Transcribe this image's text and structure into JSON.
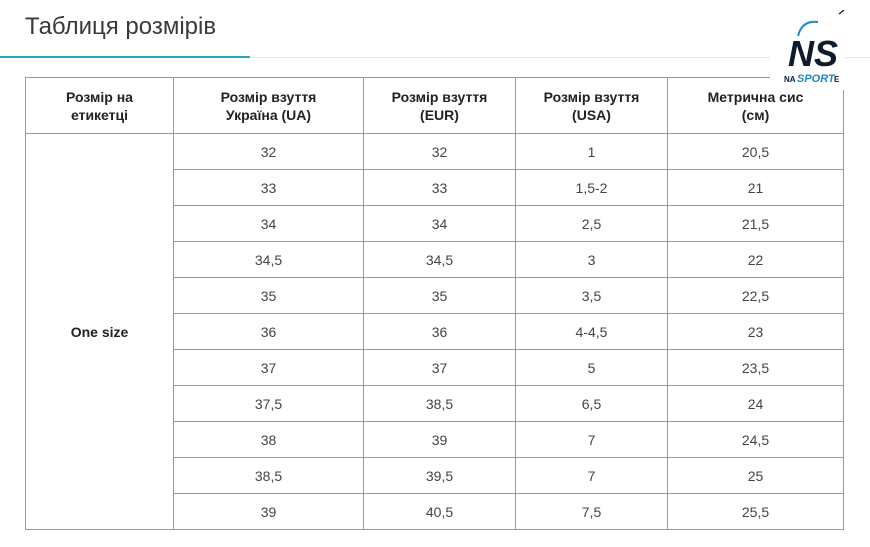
{
  "page": {
    "title": "Таблиця розмірів"
  },
  "table": {
    "headers": [
      [
        "Розмір на",
        "етикетці"
      ],
      [
        "Розмір взуття",
        "Україна (UA)"
      ],
      [
        "Розмір взуття",
        "(EUR)"
      ],
      [
        "Розмір взуття",
        "(USA)"
      ],
      [
        "Метрична сис",
        "(см)"
      ]
    ],
    "label": "One size",
    "rows": [
      [
        "32",
        "32",
        "1",
        "20,5"
      ],
      [
        "33",
        "33",
        "1,5-2",
        "21"
      ],
      [
        "34",
        "34",
        "2,5",
        "21,5"
      ],
      [
        "34,5",
        "34,5",
        "3",
        "22"
      ],
      [
        "35",
        "35",
        "3,5",
        "22,5"
      ],
      [
        "36",
        "36",
        "4-4,5",
        "23"
      ],
      [
        "37",
        "37",
        "5",
        "23,5"
      ],
      [
        "37,5",
        "38,5",
        "6,5",
        "24"
      ],
      [
        "38",
        "39",
        "7",
        "24,5"
      ],
      [
        "38,5",
        "39,5",
        "7",
        "25"
      ],
      [
        "39",
        "40,5",
        "7,5",
        "25,5"
      ]
    ]
  },
  "logo": {
    "top": "NS",
    "prefix": "NA",
    "brand": "SPORT",
    "suffix": "E"
  },
  "colors": {
    "accent": "#2aa3c9",
    "logo_blue": "#1e88c8",
    "logo_dark": "#0d1b2a"
  }
}
